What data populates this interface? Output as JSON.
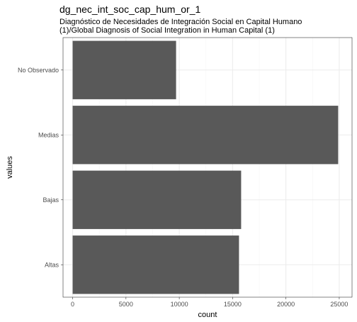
{
  "chart_data": {
    "type": "bar",
    "orientation": "horizontal",
    "title": "dg_nec_int_soc_cap_hum_or_1",
    "subtitle": [
      "Diagnóstico de Necesidades de Integración Social en Capital Humano",
      "(1)/Global Diagnosis of Social Integration in Human Capital (1)"
    ],
    "xlabel": "count",
    "ylabel": "values",
    "categories": [
      "No Observado",
      "Medias",
      "Bajas",
      "Altas"
    ],
    "values": [
      9700,
      24900,
      15800,
      15600
    ],
    "xlim": [
      -900,
      26200
    ],
    "xticks": [
      0,
      5000,
      10000,
      15000,
      20000,
      25000
    ],
    "grid": true,
    "legend": "none",
    "colors": {
      "bar": "#595959",
      "grid_major": "#ebebeb",
      "grid_minor": "#f5f5f5",
      "panel_border": "#333333",
      "background": "#ffffff"
    }
  }
}
